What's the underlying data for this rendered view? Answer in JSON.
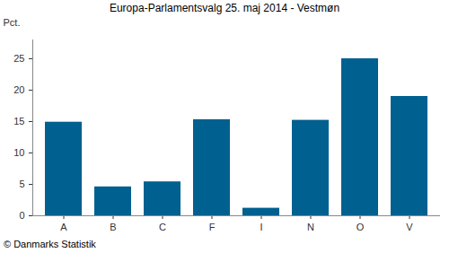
{
  "chart_data": {
    "type": "bar",
    "title": "Europa-Parlamentsvalg 25. maj 2014 - Vestmøn",
    "y_label": "Pct.",
    "caption": "© Danmarks Statistik",
    "categories": [
      "A",
      "B",
      "C",
      "F",
      "I",
      "N",
      "O",
      "V"
    ],
    "values": [
      14.9,
      4.6,
      5.4,
      15.3,
      1.2,
      15.2,
      25.0,
      19.0
    ],
    "color": "#00608f",
    "ylim": [
      0,
      28
    ],
    "yticks": [
      0,
      5,
      10,
      15,
      20,
      25
    ],
    "grid": false
  }
}
